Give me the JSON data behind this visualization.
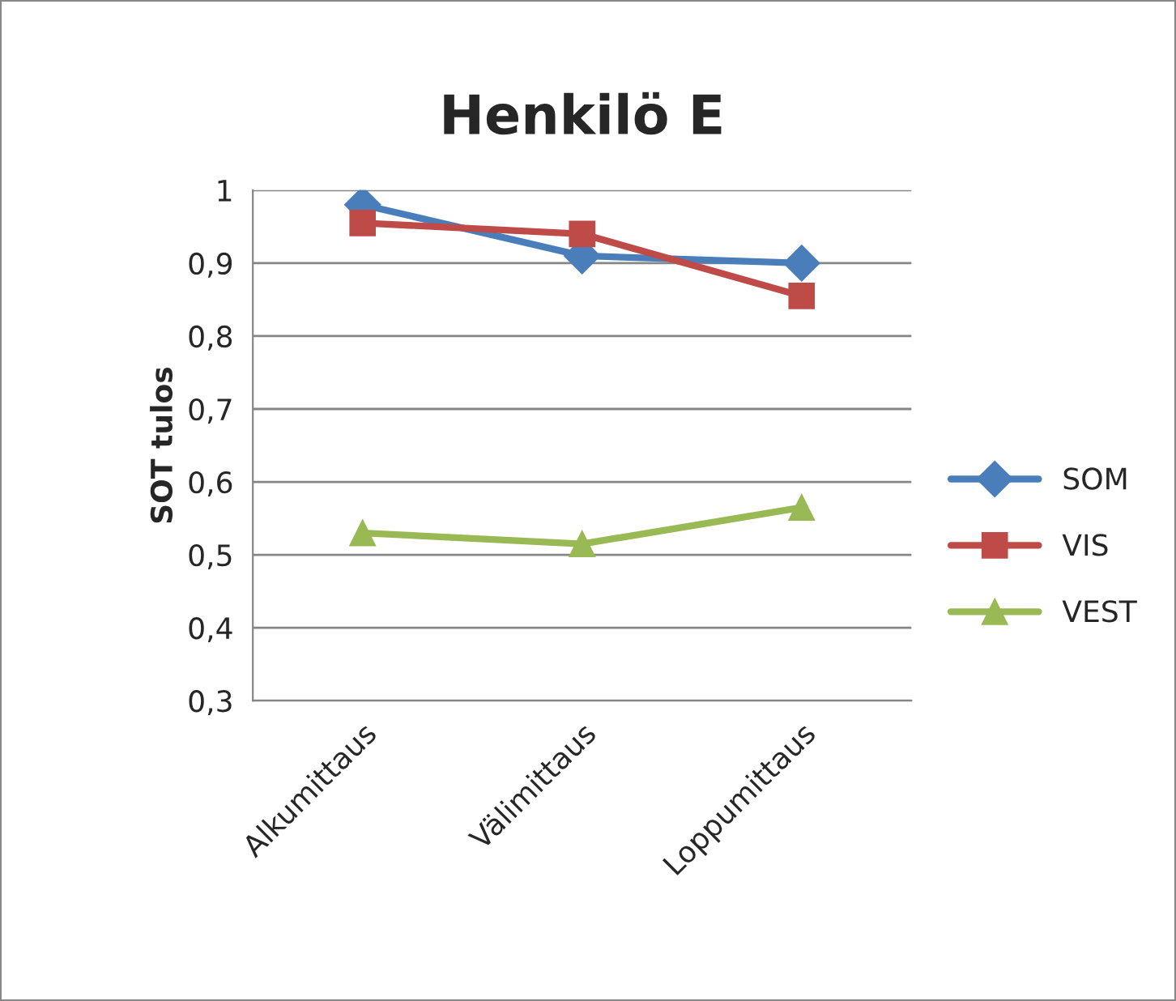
{
  "chart_data": {
    "type": "line",
    "title": "Henkilö E",
    "ylabel": "SOT tulos",
    "categories": [
      "Alkumittaus",
      "Välimittaus",
      "Loppumittaus"
    ],
    "series": [
      {
        "name": "SOM",
        "color": "#4a7ebb",
        "marker": "diamond",
        "values": [
          0.98,
          0.91,
          0.9
        ]
      },
      {
        "name": "VIS",
        "color": "#be4b48",
        "marker": "square",
        "values": [
          0.955,
          0.94,
          0.855
        ]
      },
      {
        "name": "VEST",
        "color": "#98b954",
        "marker": "triangle",
        "values": [
          0.53,
          0.515,
          0.565
        ]
      }
    ],
    "ylim": [
      0.3,
      1
    ],
    "yticks": [
      {
        "value": 0.3,
        "label": "0,3"
      },
      {
        "value": 0.4,
        "label": "0,4"
      },
      {
        "value": 0.5,
        "label": "0,5"
      },
      {
        "value": 0.6,
        "label": "0,6"
      },
      {
        "value": 0.7,
        "label": "0,7"
      },
      {
        "value": 0.8,
        "label": "0,8"
      },
      {
        "value": 0.9,
        "label": "0,9"
      },
      {
        "value": 1,
        "label": "1"
      }
    ],
    "grid": "y",
    "legend": "right"
  }
}
